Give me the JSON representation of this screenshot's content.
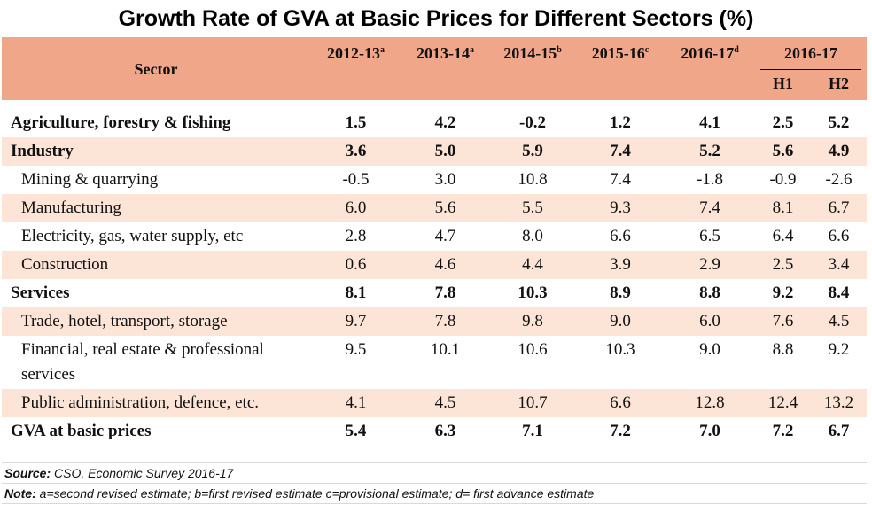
{
  "title": "Growth Rate of GVA at Basic Prices for Different Sectors (%)",
  "table": {
    "header": {
      "sector": "Sector",
      "years": [
        {
          "label": "2012-13",
          "sup": "a"
        },
        {
          "label": "2013-14",
          "sup": "a"
        },
        {
          "label": "2014-15",
          "sup": "b"
        },
        {
          "label": "2015-16",
          "sup": "c"
        },
        {
          "label": "2016-17",
          "sup": "d"
        }
      ],
      "halfyear_group": "2016-17",
      "h1": "H1",
      "h2": "H2"
    },
    "rows": [
      {
        "label": "Agriculture, forestry & fishing",
        "v": [
          "1.5",
          "4.2",
          "-0.2",
          "1.2",
          "4.1",
          "2.5",
          "5.2"
        ]
      },
      {
        "label": "Industry",
        "v": [
          "3.6",
          "5.0",
          "5.9",
          "7.4",
          "5.2",
          "5.6",
          "4.9"
        ]
      },
      {
        "label": "Mining & quarrying",
        "v": [
          "-0.5",
          "3.0",
          "10.8",
          "7.4",
          "-1.8",
          "-0.9",
          "-2.6"
        ]
      },
      {
        "label": "Manufacturing",
        "v": [
          "6.0",
          "5.6",
          "5.5",
          "9.3",
          "7.4",
          "8.1",
          "6.7"
        ]
      },
      {
        "label": "Electricity, gas, water supply, etc",
        "v": [
          "2.8",
          "4.7",
          "8.0",
          "6.6",
          "6.5",
          "6.4",
          "6.6"
        ]
      },
      {
        "label": "Construction",
        "v": [
          "0.6",
          "4.6",
          "4.4",
          "3.9",
          "2.9",
          "2.5",
          "3.4"
        ]
      },
      {
        "label": "Services",
        "v": [
          "8.1",
          "7.8",
          "10.3",
          "8.9",
          "8.8",
          "9.2",
          "8.4"
        ]
      },
      {
        "label": "Trade, hotel, transport, storage",
        "v": [
          "9.7",
          "7.8",
          "9.8",
          "9.0",
          "6.0",
          "7.6",
          "4.5"
        ]
      },
      {
        "label": "Financial, real estate & professional services",
        "v": [
          "9.5",
          "10.1",
          "10.6",
          "10.3",
          "9.0",
          "8.8",
          "9.2"
        ]
      },
      {
        "label": "Public administration, defence, etc.",
        "v": [
          "4.1",
          "4.5",
          "10.7",
          "6.6",
          "12.8",
          "12.4",
          "13.2"
        ]
      },
      {
        "label": "GVA at basic prices",
        "v": [
          "5.4",
          "6.3",
          "7.1",
          "7.2",
          "7.0",
          "7.2",
          "6.7"
        ]
      }
    ]
  },
  "footnotes": {
    "source_label": "Source:",
    "source_text": "CSO, Economic Survey 2016-17",
    "note_label": "Note:",
    "note_text": "a=second revised estimate; b=first revised estimate c=provisional estimate; d= first advance estimate"
  },
  "colors": {
    "header_bg": "#f0a688",
    "row_shade": "#fce4d6"
  }
}
